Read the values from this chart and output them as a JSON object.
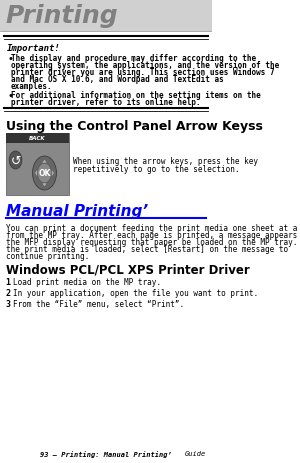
{
  "title": "Printing",
  "title_color": "#808080",
  "bg_color": "#ffffff",
  "important_label": "Important!",
  "b1_lines": [
    "The display and procedure may differ according to the",
    "operating system, the applications, and the version of the",
    "printer driver you are using. This section uses Windows 7",
    "and Mac OS X 10.6, and Wordpad and TextEdit as",
    "examples."
  ],
  "b2_lines": [
    "For additional information on the setting items on the",
    "printer driver, refer to its online help."
  ],
  "section1_title": "Using the Control Panel Arrow Keyss",
  "arrow_desc_lines": [
    "When using the arrow keys, press the key",
    "repetitively to go to the selection."
  ],
  "section2_title": "Manual Printing’",
  "section2_color": "#0000ff",
  "s2_lines": [
    "You can print a document feeding the print media one sheet at a time",
    "from the MP tray. After each page is printed, a message appears on",
    "the MFP display requesting that paper be loaded on the MP tray. Once",
    "the print media is loaded, select [Restart] on the message to",
    "continue printing."
  ],
  "section3_title": "Windows PCL/PCL XPS Printer Driver",
  "steps": [
    "Load print media on the MP tray.",
    "In your application, open the file you want to print.",
    "From the “File” menu, select “Print”."
  ],
  "footer": "93 – Printing: Manual Printing’",
  "footer_right": "Guide"
}
